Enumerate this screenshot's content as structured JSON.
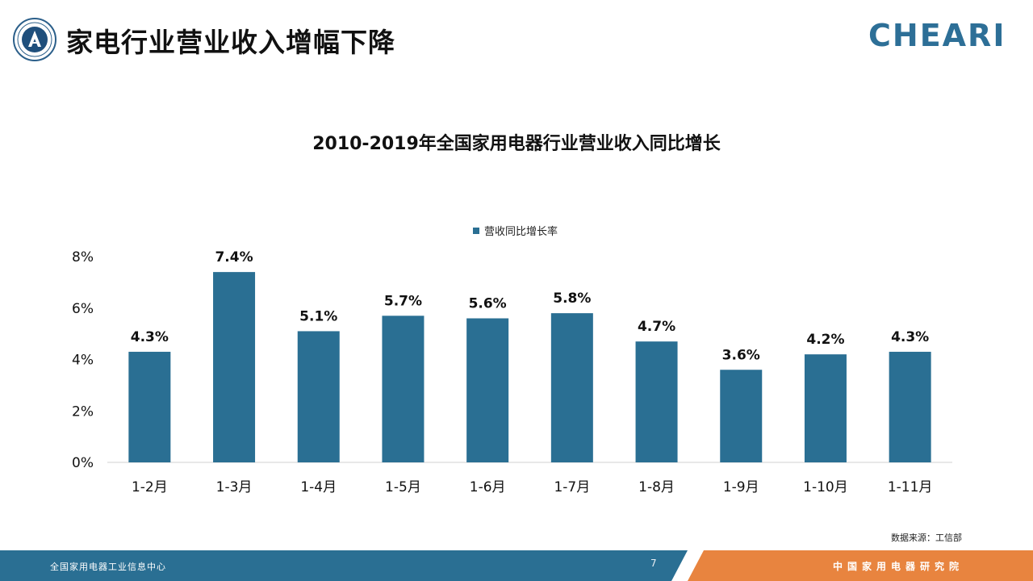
{
  "header": {
    "title": "家电行业营业收入增幅下降",
    "brand": "CHEARI"
  },
  "chart_data": {
    "type": "bar",
    "title": "2010-2019年全国家用电器行业营业收入同比增长",
    "categories": [
      "1-2月",
      "1-3月",
      "1-4月",
      "1-5月",
      "1-6月",
      "1-7月",
      "1-8月",
      "1-9月",
      "1-10月",
      "1-11月"
    ],
    "series": [
      {
        "name": "营收同比增长率",
        "values": [
          4.3,
          7.4,
          5.1,
          5.7,
          5.6,
          5.8,
          4.7,
          3.6,
          4.2,
          4.3
        ]
      }
    ],
    "data_labels": [
      "4.3%",
      "7.4%",
      "5.1%",
      "5.7%",
      "5.6%",
      "5.8%",
      "4.7%",
      "3.6%",
      "4.2%",
      "4.3%"
    ],
    "yticks": [
      "0%",
      "2%",
      "4%",
      "6%",
      "8%"
    ],
    "ytick_values": [
      0,
      2,
      4,
      6,
      8
    ],
    "ylim": [
      0,
      8
    ],
    "xlabel": "",
    "ylabel": "",
    "grid": false,
    "legend_position": "top-center",
    "bar_color": "#2a6f93"
  },
  "source": "数据来源：工信部",
  "footer": {
    "left": "全国家用电器工业信息中心",
    "page": "7",
    "right": "中国家用电器研究院",
    "left_color": "#2a6f93",
    "right_color": "#e8843f"
  }
}
